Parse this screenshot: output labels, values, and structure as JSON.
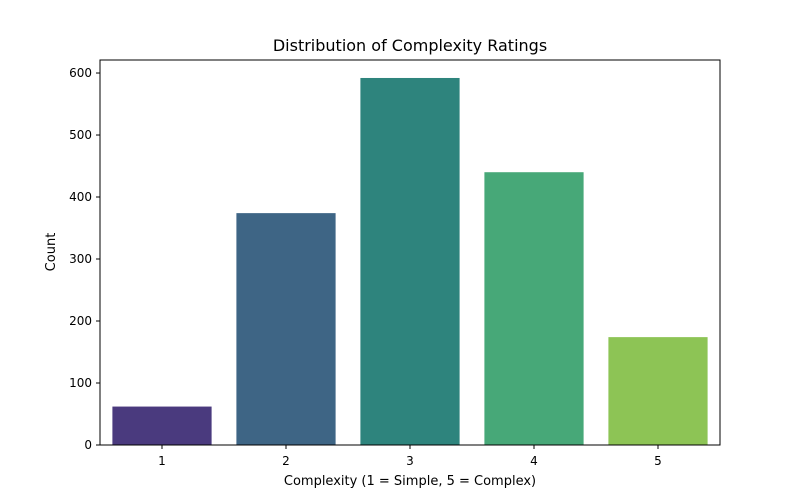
{
  "chart_data": {
    "type": "bar",
    "title": "Distribution of Complexity Ratings",
    "xlabel": "Complexity (1 = Simple, 5 = Complex)",
    "ylabel": "Count",
    "categories": [
      "1",
      "2",
      "3",
      "4",
      "5"
    ],
    "values": [
      62,
      374,
      592,
      440,
      174
    ],
    "ylim": [
      0,
      621
    ],
    "yticks": [
      0,
      100,
      200,
      300,
      400,
      500,
      600
    ],
    "colors": [
      "#4a3a7e",
      "#3e6585",
      "#2e847d",
      "#47a878",
      "#8dc455"
    ],
    "grid": false,
    "legend": false
  }
}
